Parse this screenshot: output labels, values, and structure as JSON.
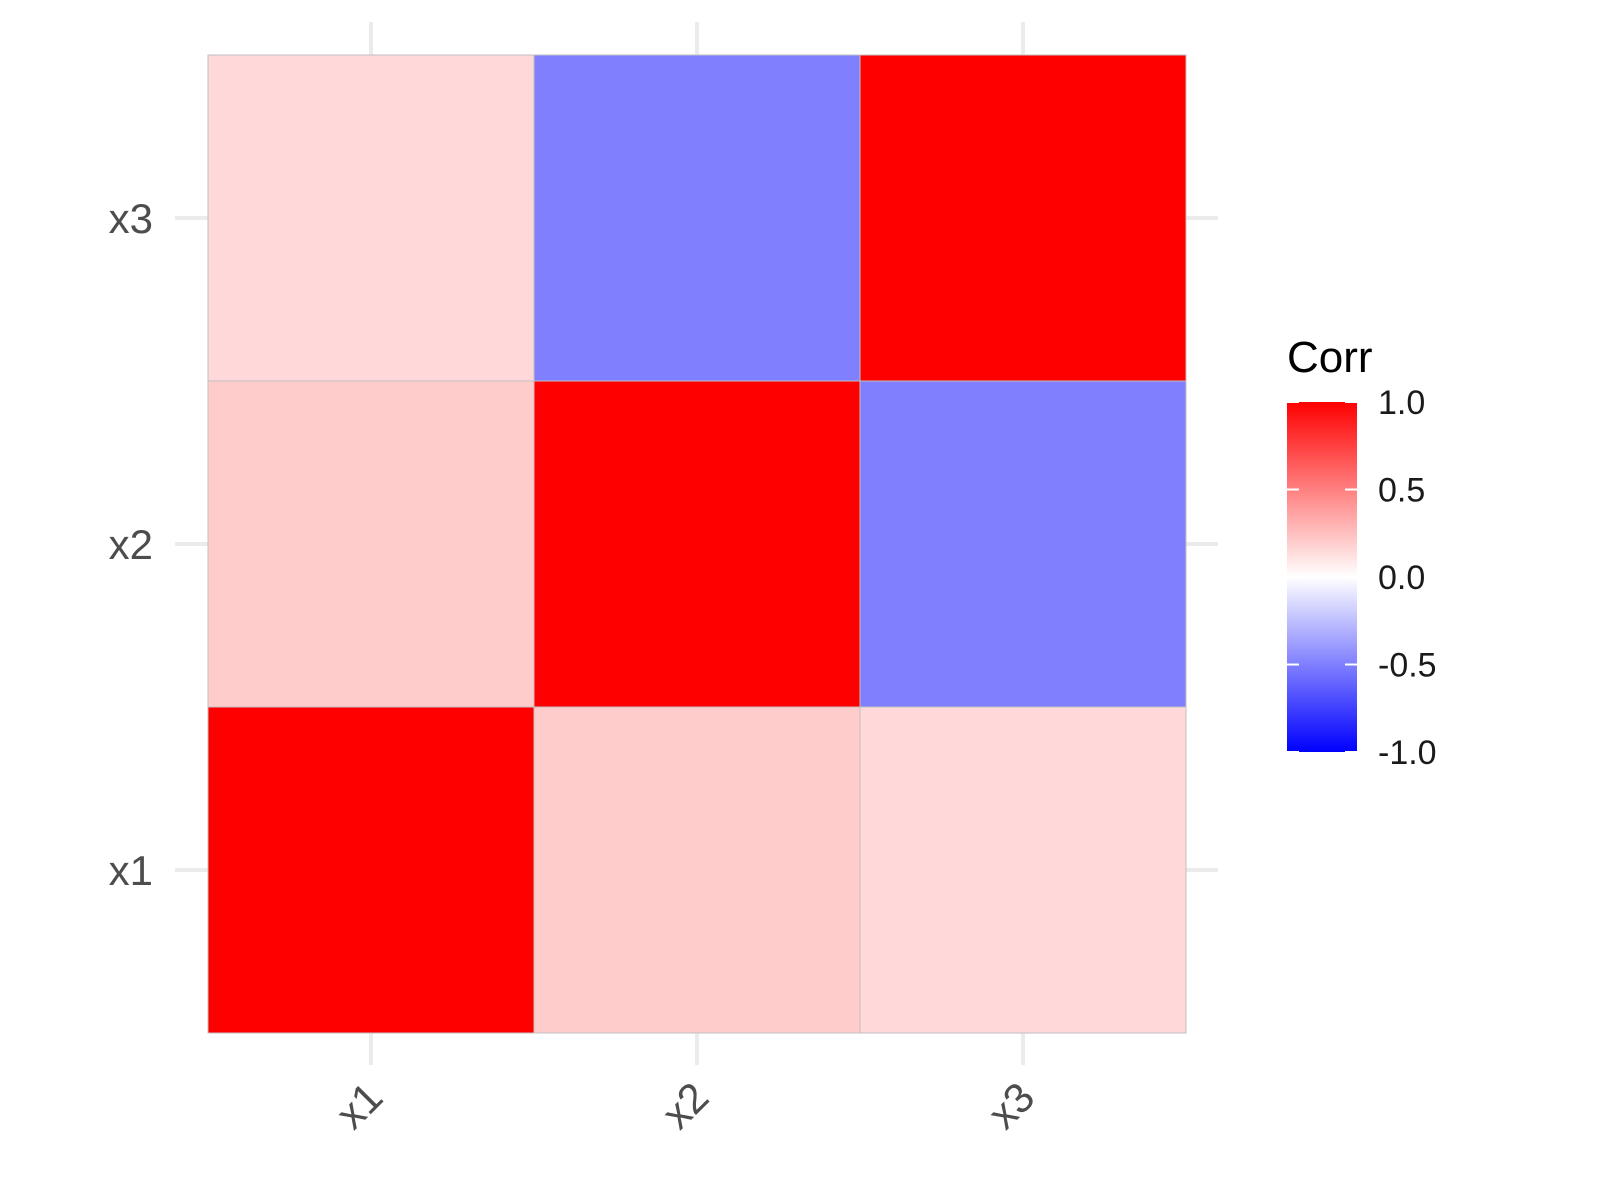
{
  "chart_data": {
    "type": "heatmap",
    "title": "",
    "xlabel": "",
    "ylabel": "",
    "x_categories": [
      "x1",
      "x2",
      "x3"
    ],
    "y_categories": [
      "x1",
      "x2",
      "x3"
    ],
    "values": [
      [
        1.0,
        0.2,
        0.15
      ],
      [
        0.2,
        1.0,
        -0.5
      ],
      [
        0.15,
        -0.5,
        1.0
      ]
    ],
    "legend": {
      "title": "Corr",
      "placement": "right",
      "range": [
        -1.0,
        1.0
      ],
      "ticks": [
        "1.0",
        "0.5",
        "0.0",
        "-0.5",
        "-1.0"
      ],
      "tick_values": [
        1.0,
        0.5,
        0.0,
        -0.5,
        -1.0
      ]
    },
    "colors": {
      "low": "#0000ff",
      "mid": "#ffffff",
      "high": "#ff0000"
    },
    "grid": true,
    "x_tick_rotation": "45"
  }
}
